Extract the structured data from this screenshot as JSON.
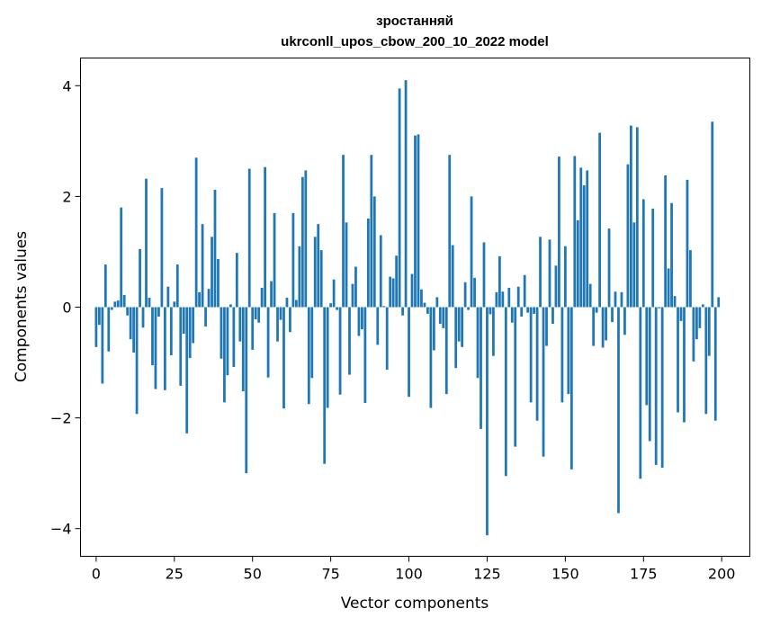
{
  "chart_data": {
    "type": "bar",
    "title": "зростанняй",
    "subtitle": "ukrconll_upos_cbow_200_10_2022 model",
    "xlabel": "Vector components",
    "ylabel": "Components values",
    "xlim": [
      -5,
      209
    ],
    "ylim": [
      -4.5,
      4.5
    ],
    "x_ticks": [
      0,
      25,
      50,
      75,
      100,
      125,
      150,
      175,
      200
    ],
    "y_ticks": [
      -4,
      -2,
      0,
      2,
      4
    ],
    "grid": false,
    "color": "#1f77b4",
    "values": [
      -0.72,
      -0.32,
      -1.38,
      0.77,
      -0.8,
      -0.05,
      0.1,
      0.12,
      1.8,
      0.22,
      -0.15,
      -0.58,
      -0.82,
      -1.93,
      1.05,
      -0.37,
      2.32,
      0.17,
      -1.05,
      -1.48,
      -0.17,
      2.15,
      -1.5,
      0.37,
      -0.87,
      0.1,
      0.77,
      -1.42,
      -0.48,
      -2.28,
      -0.92,
      -0.65,
      2.7,
      0.27,
      1.5,
      -0.35,
      0.33,
      1.27,
      2.12,
      0.87,
      -0.93,
      -1.72,
      -1.23,
      0.05,
      -1.08,
      0.98,
      -0.62,
      -1.52,
      -3.0,
      2.5,
      -0.77,
      -0.22,
      -0.28,
      0.35,
      2.53,
      -1.27,
      0.47,
      1.7,
      -0.62,
      -0.23,
      -1.83,
      0.17,
      -0.45,
      1.7,
      0.13,
      1.1,
      2.35,
      2.47,
      -1.75,
      -1.28,
      1.27,
      1.5,
      1.03,
      -2.83,
      -1.82,
      0.07,
      0.5,
      -0.05,
      -1.58,
      2.75,
      1.53,
      -1.22,
      0.42,
      0.73,
      -0.52,
      -0.4,
      -1.73,
      1.6,
      2.75,
      2.0,
      -0.68,
      1.3,
      0.02,
      -1.13,
      0.55,
      0.52,
      0.93,
      3.95,
      -0.15,
      4.1,
      -1.62,
      0.6,
      3.1,
      3.12,
      0.32,
      0.08,
      -0.12,
      -1.82,
      -0.78,
      0.18,
      -0.3,
      -0.38,
      -1.57,
      2.75,
      1.12,
      -1.1,
      -0.62,
      -0.72,
      0.45,
      -0.05,
      2.0,
      0.53,
      -1.28,
      -2.2,
      1.17,
      -4.12,
      -0.13,
      -0.88,
      0.27,
      0.92,
      0.28,
      -3.05,
      0.35,
      -0.28,
      -2.52,
      0.37,
      -0.17,
      0.58,
      -0.1,
      -1.72,
      -0.12,
      -2.05,
      1.27,
      -2.7,
      -0.7,
      1.22,
      -0.3,
      0.75,
      2.72,
      -1.72,
      1.1,
      -1.57,
      -2.93,
      2.73,
      1.57,
      2.52,
      2.2,
      2.47,
      0.42,
      -0.7,
      -0.1,
      3.15,
      -0.73,
      -0.6,
      1.42,
      -0.27,
      0.28,
      -3.72,
      0.27,
      -0.5,
      2.58,
      3.28,
      1.53,
      3.25,
      -3.1,
      1.95,
      -1.77,
      -2.42,
      1.78,
      -2.85,
      -0.02,
      -2.9,
      2.38,
      0.7,
      1.88,
      0.2,
      -1.9,
      -0.25,
      -2.08,
      2.3,
      1.03,
      -0.98,
      -0.58,
      -0.38,
      0.05,
      -1.93,
      -0.88,
      3.35,
      -2.05,
      0.18
    ]
  }
}
